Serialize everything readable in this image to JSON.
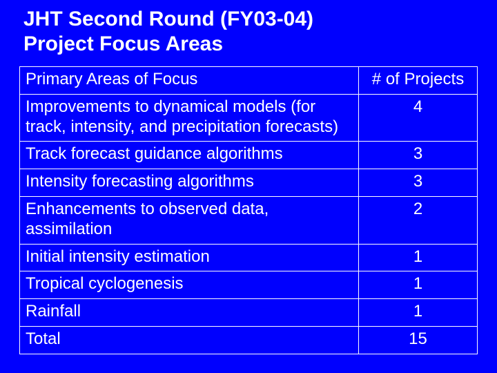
{
  "title_line1": "JHT Second Round (FY03-04)",
  "title_line2": "Project Focus Areas",
  "header": {
    "area": "Primary Areas of Focus",
    "count": "# of Projects"
  },
  "rows": [
    {
      "area": "Improvements to dynamical models (for track, intensity, and precipitation forecasts)",
      "count": "4"
    },
    {
      "area": "Track forecast guidance algorithms",
      "count": "3"
    },
    {
      "area": "Intensity forecasting algorithms",
      "count": "3"
    },
    {
      "area": "Enhancements to observed data, assimilation",
      "count": "2"
    },
    {
      "area": "Initial intensity estimation",
      "count": "1"
    },
    {
      "area": "Tropical cyclogenesis",
      "count": "1"
    },
    {
      "area": "Rainfall",
      "count": "1"
    },
    {
      "area": "Total",
      "count": "15"
    }
  ],
  "colors": {
    "background": "#0000fe",
    "text": "#ffffff",
    "border": "#ffffff"
  }
}
